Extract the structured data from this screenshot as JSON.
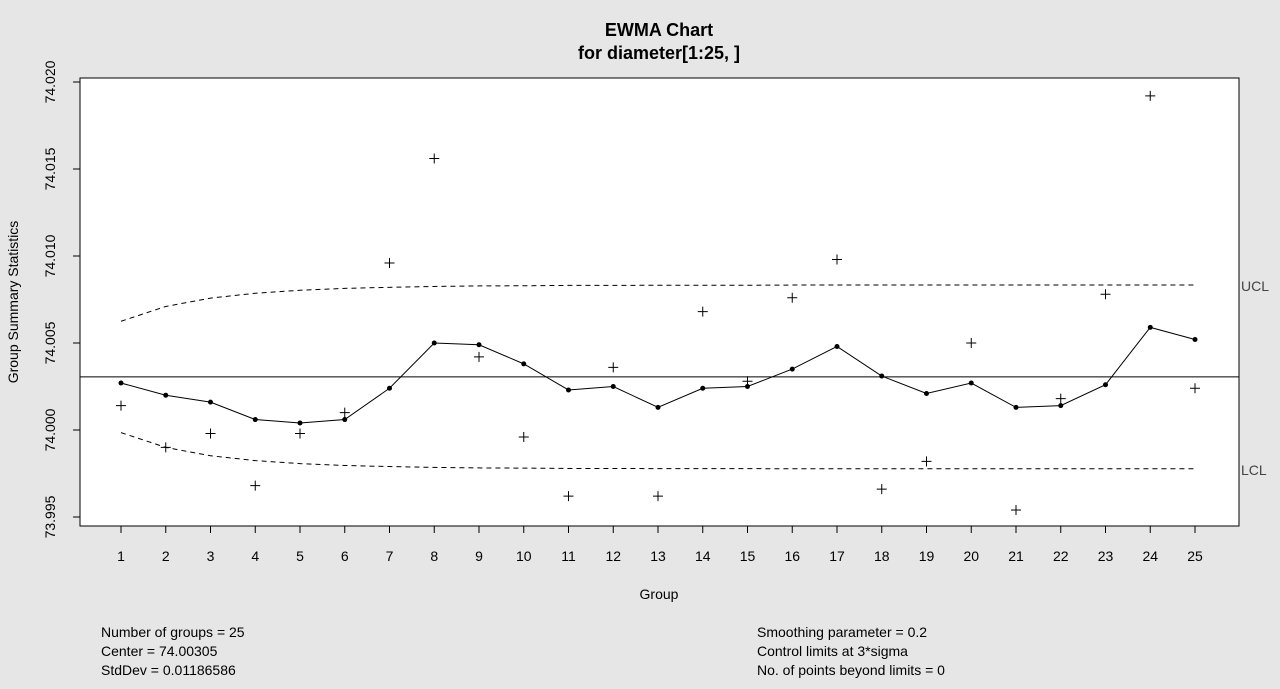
{
  "chart_data": {
    "type": "line",
    "title": "EWMA Chart",
    "subtitle": "for diameter[1:25, ]",
    "xlabel": "Group",
    "ylabel": "Group Summary Statistics",
    "x": [
      1,
      2,
      3,
      4,
      5,
      6,
      7,
      8,
      9,
      10,
      11,
      12,
      13,
      14,
      15,
      16,
      17,
      18,
      19,
      20,
      21,
      22,
      23,
      24,
      25
    ],
    "ylim": [
      73.995,
      74.02
    ],
    "yticks": [
      "73.995",
      "74.000",
      "74.005",
      "74.010",
      "74.015",
      "74.020"
    ],
    "center": 74.00305,
    "series": [
      {
        "type": "scatter",
        "marker": "+",
        "values": [
          74.0014,
          73.999,
          73.9998,
          73.9968,
          73.9998,
          74.001,
          74.0096,
          74.0156,
          74.0042,
          73.9996,
          73.9962,
          74.0036,
          73.9962,
          74.0068,
          74.0028,
          74.0076,
          74.0098,
          73.9966,
          73.9982,
          74.005,
          73.9954,
          74.0018,
          74.0078,
          74.0192,
          74.0024
        ]
      },
      {
        "type": "line",
        "marker": "dot",
        "values": [
          74.0027,
          74.002,
          74.0016,
          74.0006,
          74.0004,
          74.0006,
          74.0024,
          74.005,
          74.0049,
          74.0038,
          74.0023,
          74.0025,
          74.0013,
          74.0024,
          74.0025,
          74.0035,
          74.0048,
          74.0031,
          74.0021,
          74.0027,
          74.0013,
          74.0014,
          74.0026,
          74.0059,
          74.0052
        ]
      },
      {
        "type": "line",
        "style": "dashed",
        "name": "UCL",
        "values": [
          74.00625,
          74.0071,
          74.00758,
          74.00786,
          74.00803,
          74.00814,
          74.0082,
          74.00825,
          74.00828,
          74.00829,
          74.00831,
          74.00831,
          74.00832,
          74.00832,
          74.00832,
          74.00833,
          74.00833,
          74.00833,
          74.00833,
          74.00833,
          74.00833,
          74.00833,
          74.00833,
          74.00833,
          74.00833
        ]
      },
      {
        "type": "line",
        "style": "dashed",
        "name": "LCL",
        "values": [
          73.99985,
          73.999,
          73.99852,
          73.99824,
          73.99807,
          73.99796,
          73.9979,
          73.99785,
          73.99782,
          73.99781,
          73.99779,
          73.99779,
          73.99778,
          73.99778,
          73.99778,
          73.99777,
          73.99777,
          73.99777,
          73.99777,
          73.99777,
          73.99777,
          73.99777,
          73.99777,
          73.99777,
          73.99777
        ]
      }
    ],
    "grid": false
  },
  "info": {
    "left": [
      "Number of groups = 25",
      "Center = 74.00305",
      "StdDev = 0.01186586"
    ],
    "right": [
      "Smoothing parameter =  0.2",
      "Control limits at 3*sigma",
      "No. of points beyond limits = 0"
    ]
  }
}
